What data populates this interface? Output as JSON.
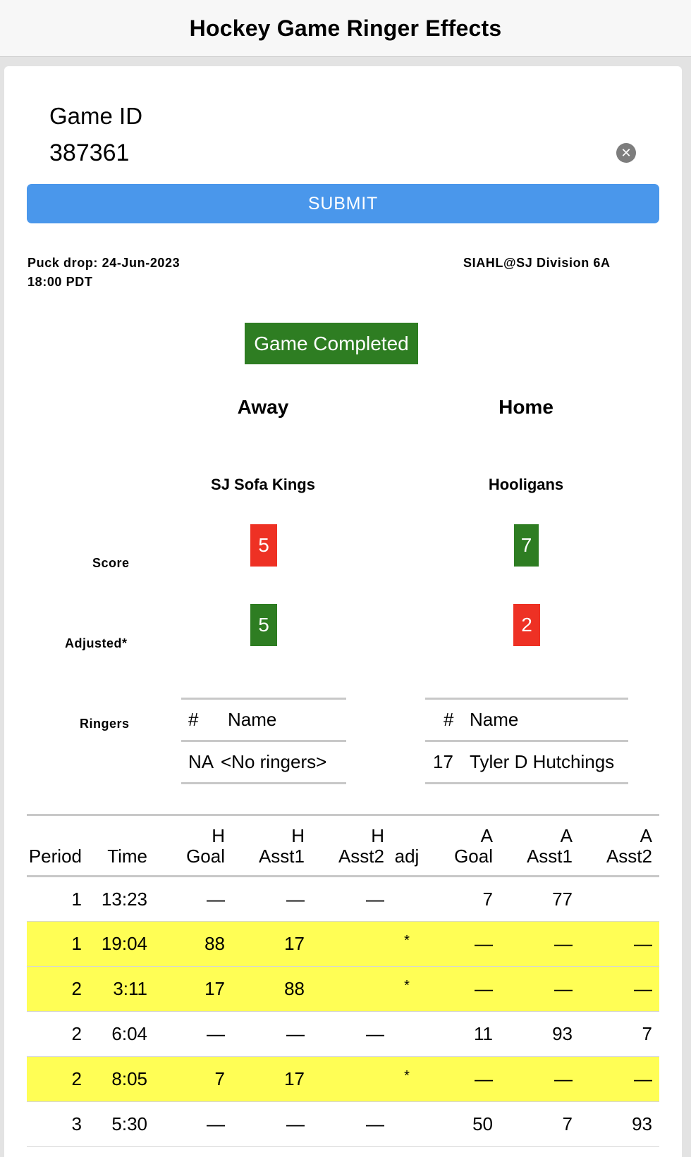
{
  "header": {
    "title": "Hockey Game Ringer Effects"
  },
  "form": {
    "game_id_label": "Game ID",
    "game_id_value": "387361",
    "submit_label": "SUBMIT"
  },
  "game": {
    "puck_drop": "Puck drop: 24-Jun-2023 18:00 PDT",
    "division": "SIAHL@SJ Division 6A",
    "status": "Game Completed"
  },
  "teams": {
    "away_heading": "Away",
    "home_heading": "Home",
    "away_name": "SJ Sofa Kings",
    "home_name": "Hooligans"
  },
  "labels": {
    "score": "Score",
    "adjusted": "Adjusted*",
    "ringers": "Ringers"
  },
  "scores": {
    "away": "5",
    "home": "7",
    "away_adjusted": "5",
    "home_adjusted": "2"
  },
  "colors": {
    "win": "#2e7d22",
    "loss": "#ee3124",
    "highlight": "#fffe55",
    "accent": "#4a97eb"
  },
  "ringers": {
    "away": {
      "header": [
        "#",
        "Name"
      ],
      "rows": [
        [
          "NA",
          "<No ringers>"
        ]
      ]
    },
    "home": {
      "header": [
        "#",
        "Name"
      ],
      "rows": [
        [
          "17",
          "Tyler D Hutchings"
        ]
      ]
    }
  },
  "goals": {
    "columns": [
      [
        "",
        "Period"
      ],
      [
        "",
        "Time"
      ],
      [
        "H",
        "Goal"
      ],
      [
        "H",
        "Asst1"
      ],
      [
        "H",
        "Asst2"
      ],
      [
        "",
        "adj"
      ],
      [
        "A",
        "Goal"
      ],
      [
        "A",
        "Asst1"
      ],
      [
        "A",
        "Asst2"
      ]
    ],
    "rows": [
      {
        "highlight": false,
        "cells": [
          "1",
          "13:23",
          "—",
          "—",
          "—",
          "",
          "7",
          "77",
          ""
        ]
      },
      {
        "highlight": true,
        "cells": [
          "1",
          "19:04",
          "88",
          "17",
          "",
          "*",
          "—",
          "—",
          "—"
        ]
      },
      {
        "highlight": true,
        "cells": [
          "2",
          "3:11",
          "17",
          "88",
          "",
          "*",
          "—",
          "—",
          "—"
        ]
      },
      {
        "highlight": false,
        "cells": [
          "2",
          "6:04",
          "—",
          "—",
          "—",
          "",
          "11",
          "93",
          "7"
        ]
      },
      {
        "highlight": true,
        "cells": [
          "2",
          "8:05",
          "7",
          "17",
          "",
          "*",
          "—",
          "—",
          "—"
        ]
      },
      {
        "highlight": false,
        "cells": [
          "3",
          "5:30",
          "—",
          "—",
          "—",
          "",
          "50",
          "7",
          "93"
        ]
      }
    ]
  }
}
